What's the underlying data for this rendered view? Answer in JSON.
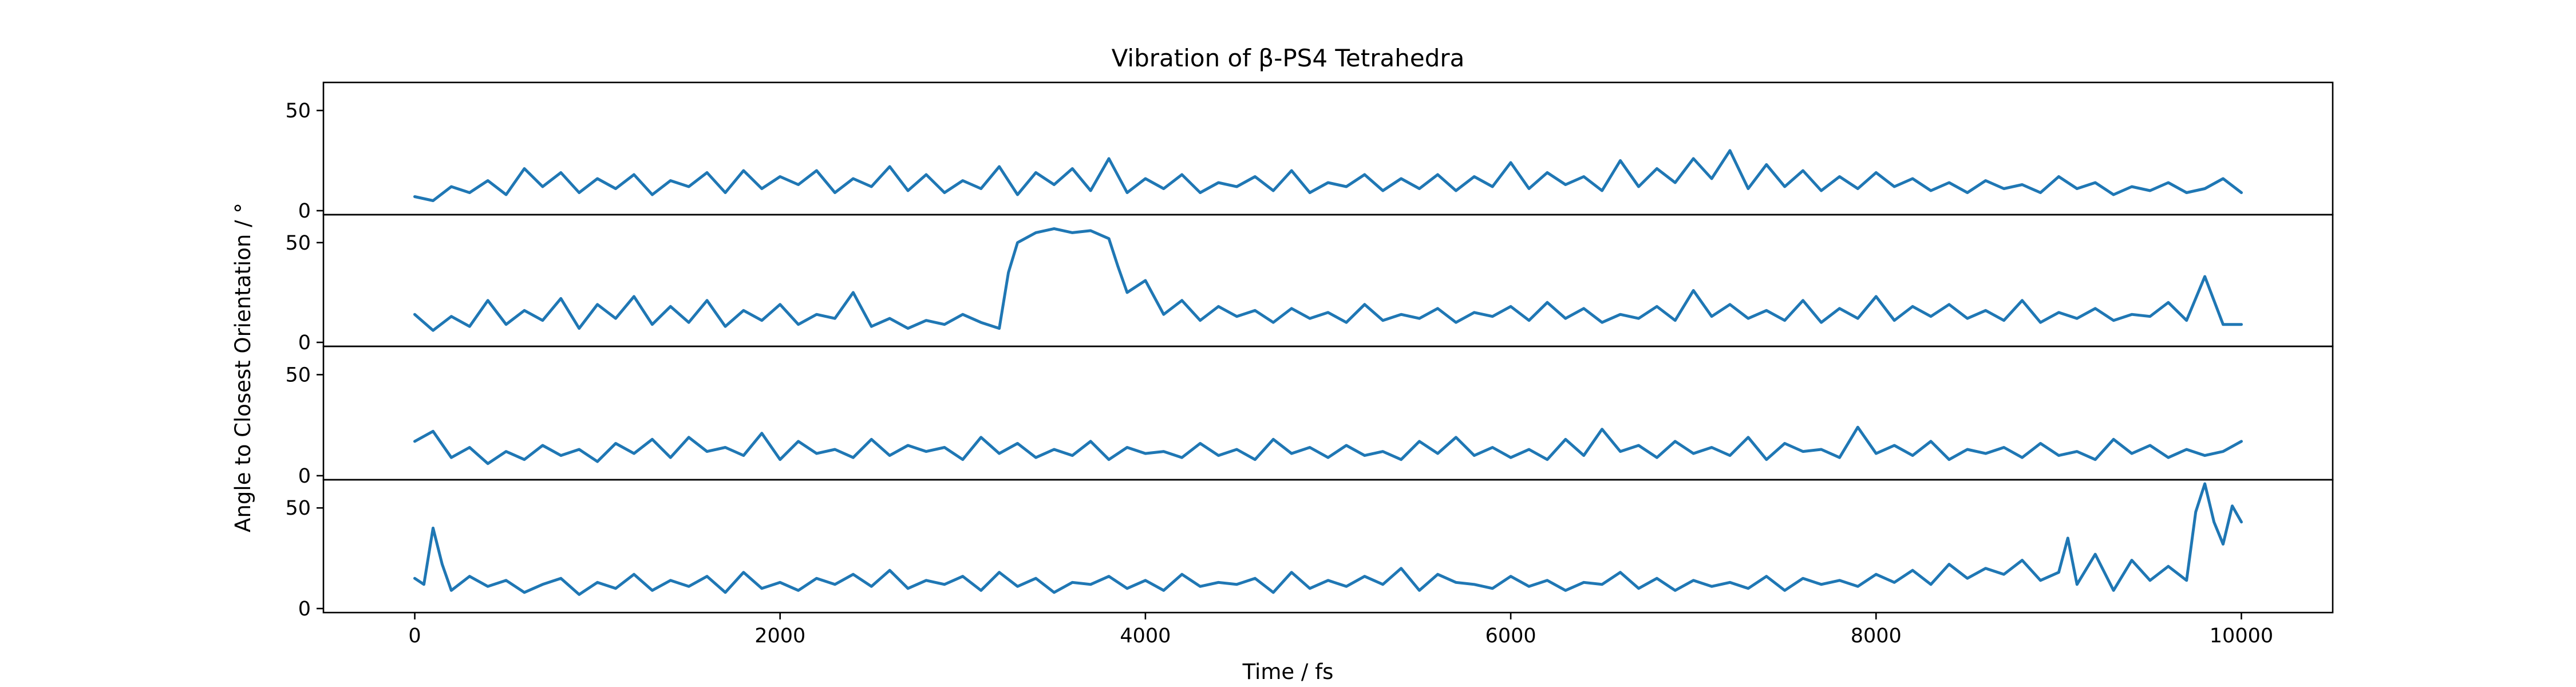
{
  "chart_data": {
    "type": "line",
    "title": "Vibration of β-PS4 Tetrahedra",
    "xlabel": "Time / fs",
    "ylabel": "Angle to Closest Orientation / °",
    "xlim": [
      -500,
      10500
    ],
    "ylim": [
      -2,
      64
    ],
    "xticks": [
      "0",
      "2000",
      "4000",
      "6000",
      "8000",
      "10000"
    ],
    "yticks": [
      "0",
      "50"
    ],
    "grid": false,
    "legend": "none",
    "line_color": "#1f77b4",
    "panels": [
      {
        "x": [
          0,
          100,
          200,
          300,
          400,
          500,
          600,
          700,
          800,
          900,
          1000,
          1100,
          1200,
          1300,
          1400,
          1500,
          1600,
          1700,
          1800,
          1900,
          2000,
          2100,
          2200,
          2300,
          2400,
          2500,
          2600,
          2700,
          2800,
          2900,
          3000,
          3100,
          3200,
          3300,
          3400,
          3500,
          3600,
          3700,
          3800,
          3900,
          4000,
          4100,
          4200,
          4300,
          4400,
          4500,
          4600,
          4700,
          4800,
          4900,
          5000,
          5100,
          5200,
          5300,
          5400,
          5500,
          5600,
          5700,
          5800,
          5900,
          6000,
          6100,
          6200,
          6300,
          6400,
          6500,
          6600,
          6700,
          6800,
          6900,
          7000,
          7100,
          7200,
          7300,
          7400,
          7500,
          7600,
          7700,
          7800,
          7900,
          8000,
          8100,
          8200,
          8300,
          8400,
          8500,
          8600,
          8700,
          8800,
          8900,
          9000,
          9100,
          9200,
          9300,
          9400,
          9500,
          9600,
          9700,
          9800,
          9900,
          10000
        ],
        "y": [
          7,
          5,
          12,
          9,
          15,
          8,
          21,
          12,
          19,
          9,
          16,
          11,
          18,
          8,
          15,
          12,
          19,
          9,
          20,
          11,
          17,
          13,
          20,
          9,
          16,
          12,
          22,
          10,
          18,
          9,
          15,
          11,
          22,
          8,
          19,
          13,
          21,
          10,
          26,
          9,
          16,
          11,
          18,
          9,
          14,
          12,
          17,
          10,
          20,
          9,
          14,
          12,
          18,
          10,
          16,
          11,
          18,
          10,
          17,
          12,
          24,
          11,
          19,
          13,
          17,
          10,
          25,
          12,
          21,
          14,
          26,
          16,
          30,
          11,
          23,
          12,
          20,
          10,
          17,
          11,
          19,
          12,
          16,
          10,
          14,
          9,
          15,
          11,
          13,
          9,
          17,
          11,
          14,
          8,
          12,
          10,
          14,
          9,
          11,
          16,
          9
        ]
      },
      {
        "x": [
          0,
          100,
          200,
          300,
          400,
          500,
          600,
          700,
          800,
          900,
          1000,
          1100,
          1200,
          1300,
          1400,
          1500,
          1600,
          1700,
          1800,
          1900,
          2000,
          2100,
          2200,
          2300,
          2400,
          2500,
          2600,
          2700,
          2800,
          2900,
          3000,
          3100,
          3200,
          3250,
          3300,
          3400,
          3500,
          3600,
          3700,
          3800,
          3850,
          3900,
          4000,
          4100,
          4200,
          4300,
          4400,
          4500,
          4600,
          4700,
          4800,
          4900,
          5000,
          5100,
          5200,
          5300,
          5400,
          5500,
          5600,
          5700,
          5800,
          5900,
          6000,
          6100,
          6200,
          6300,
          6400,
          6500,
          6600,
          6700,
          6800,
          6900,
          7000,
          7100,
          7200,
          7300,
          7400,
          7500,
          7600,
          7700,
          7800,
          7900,
          8000,
          8100,
          8200,
          8300,
          8400,
          8500,
          8600,
          8700,
          8800,
          8900,
          9000,
          9100,
          9200,
          9300,
          9400,
          9500,
          9600,
          9700,
          9800,
          9900,
          10000
        ],
        "y": [
          14,
          6,
          13,
          8,
          21,
          9,
          16,
          11,
          22,
          7,
          19,
          12,
          23,
          9,
          18,
          10,
          21,
          8,
          16,
          11,
          19,
          9,
          14,
          12,
          25,
          8,
          12,
          7,
          11,
          9,
          14,
          10,
          7,
          35,
          50,
          55,
          57,
          55,
          56,
          52,
          38,
          25,
          31,
          14,
          21,
          11,
          18,
          13,
          16,
          10,
          17,
          12,
          15,
          10,
          19,
          11,
          14,
          12,
          17,
          10,
          15,
          13,
          18,
          11,
          20,
          12,
          17,
          10,
          14,
          12,
          18,
          11,
          26,
          13,
          19,
          12,
          16,
          11,
          21,
          10,
          17,
          12,
          23,
          11,
          18,
          13,
          19,
          12,
          16,
          11,
          21,
          10,
          15,
          12,
          17,
          11,
          14,
          13,
          20,
          11,
          33,
          9,
          9
        ]
      },
      {
        "x": [
          0,
          100,
          200,
          300,
          400,
          500,
          600,
          700,
          800,
          900,
          1000,
          1100,
          1200,
          1300,
          1400,
          1500,
          1600,
          1700,
          1800,
          1900,
          2000,
          2100,
          2200,
          2300,
          2400,
          2500,
          2600,
          2700,
          2800,
          2900,
          3000,
          3100,
          3200,
          3300,
          3400,
          3500,
          3600,
          3700,
          3800,
          3900,
          4000,
          4100,
          4200,
          4300,
          4400,
          4500,
          4600,
          4700,
          4800,
          4900,
          5000,
          5100,
          5200,
          5300,
          5400,
          5500,
          5600,
          5700,
          5800,
          5900,
          6000,
          6100,
          6200,
          6300,
          6400,
          6500,
          6600,
          6700,
          6800,
          6900,
          7000,
          7100,
          7200,
          7300,
          7400,
          7500,
          7600,
          7700,
          7800,
          7900,
          8000,
          8100,
          8200,
          8300,
          8400,
          8500,
          8600,
          8700,
          8800,
          8900,
          9000,
          9100,
          9200,
          9300,
          9400,
          9500,
          9600,
          9700,
          9800,
          9900,
          10000
        ],
        "y": [
          17,
          22,
          9,
          14,
          6,
          12,
          8,
          15,
          10,
          13,
          7,
          16,
          11,
          18,
          9,
          19,
          12,
          14,
          10,
          21,
          8,
          17,
          11,
          13,
          9,
          18,
          10,
          15,
          12,
          14,
          8,
          19,
          11,
          16,
          9,
          13,
          10,
          17,
          8,
          14,
          11,
          12,
          9,
          16,
          10,
          13,
          8,
          18,
          11,
          14,
          9,
          15,
          10,
          12,
          8,
          17,
          11,
          19,
          10,
          14,
          9,
          13,
          8,
          18,
          10,
          23,
          12,
          15,
          9,
          17,
          11,
          14,
          10,
          19,
          8,
          16,
          12,
          13,
          9,
          24,
          11,
          15,
          10,
          17,
          8,
          13,
          11,
          14,
          9,
          16,
          10,
          12,
          8,
          18,
          11,
          15,
          9,
          13,
          10,
          12,
          17
        ]
      },
      {
        "x": [
          0,
          50,
          100,
          150,
          200,
          300,
          400,
          500,
          600,
          700,
          800,
          900,
          1000,
          1100,
          1200,
          1300,
          1400,
          1500,
          1600,
          1700,
          1800,
          1900,
          2000,
          2100,
          2200,
          2300,
          2400,
          2500,
          2600,
          2700,
          2800,
          2900,
          3000,
          3100,
          3200,
          3300,
          3400,
          3500,
          3600,
          3700,
          3800,
          3900,
          4000,
          4100,
          4200,
          4300,
          4400,
          4500,
          4600,
          4700,
          4800,
          4900,
          5000,
          5100,
          5200,
          5300,
          5400,
          5500,
          5600,
          5700,
          5800,
          5900,
          6000,
          6100,
          6200,
          6300,
          6400,
          6500,
          6600,
          6700,
          6800,
          6900,
          7000,
          7100,
          7200,
          7300,
          7400,
          7500,
          7600,
          7700,
          7800,
          7900,
          8000,
          8100,
          8200,
          8300,
          8400,
          8500,
          8600,
          8700,
          8800,
          8900,
          9000,
          9050,
          9100,
          9200,
          9300,
          9400,
          9500,
          9600,
          9700,
          9750,
          9800,
          9850,
          9900,
          9950,
          10000
        ],
        "y": [
          15,
          12,
          40,
          22,
          9,
          16,
          11,
          14,
          8,
          12,
          15,
          7,
          13,
          10,
          17,
          9,
          14,
          11,
          16,
          8,
          18,
          10,
          13,
          9,
          15,
          12,
          17,
          11,
          19,
          10,
          14,
          12,
          16,
          9,
          18,
          11,
          15,
          8,
          13,
          12,
          16,
          10,
          14,
          9,
          17,
          11,
          13,
          12,
          15,
          8,
          18,
          10,
          14,
          11,
          16,
          12,
          20,
          9,
          17,
          13,
          12,
          10,
          16,
          11,
          14,
          9,
          13,
          12,
          18,
          10,
          15,
          9,
          14,
          11,
          13,
          10,
          16,
          9,
          15,
          12,
          14,
          11,
          17,
          13,
          19,
          12,
          22,
          15,
          20,
          17,
          24,
          14,
          18,
          35,
          12,
          27,
          9,
          24,
          14,
          21,
          14,
          48,
          62,
          43,
          32,
          51,
          43
        ]
      }
    ]
  }
}
